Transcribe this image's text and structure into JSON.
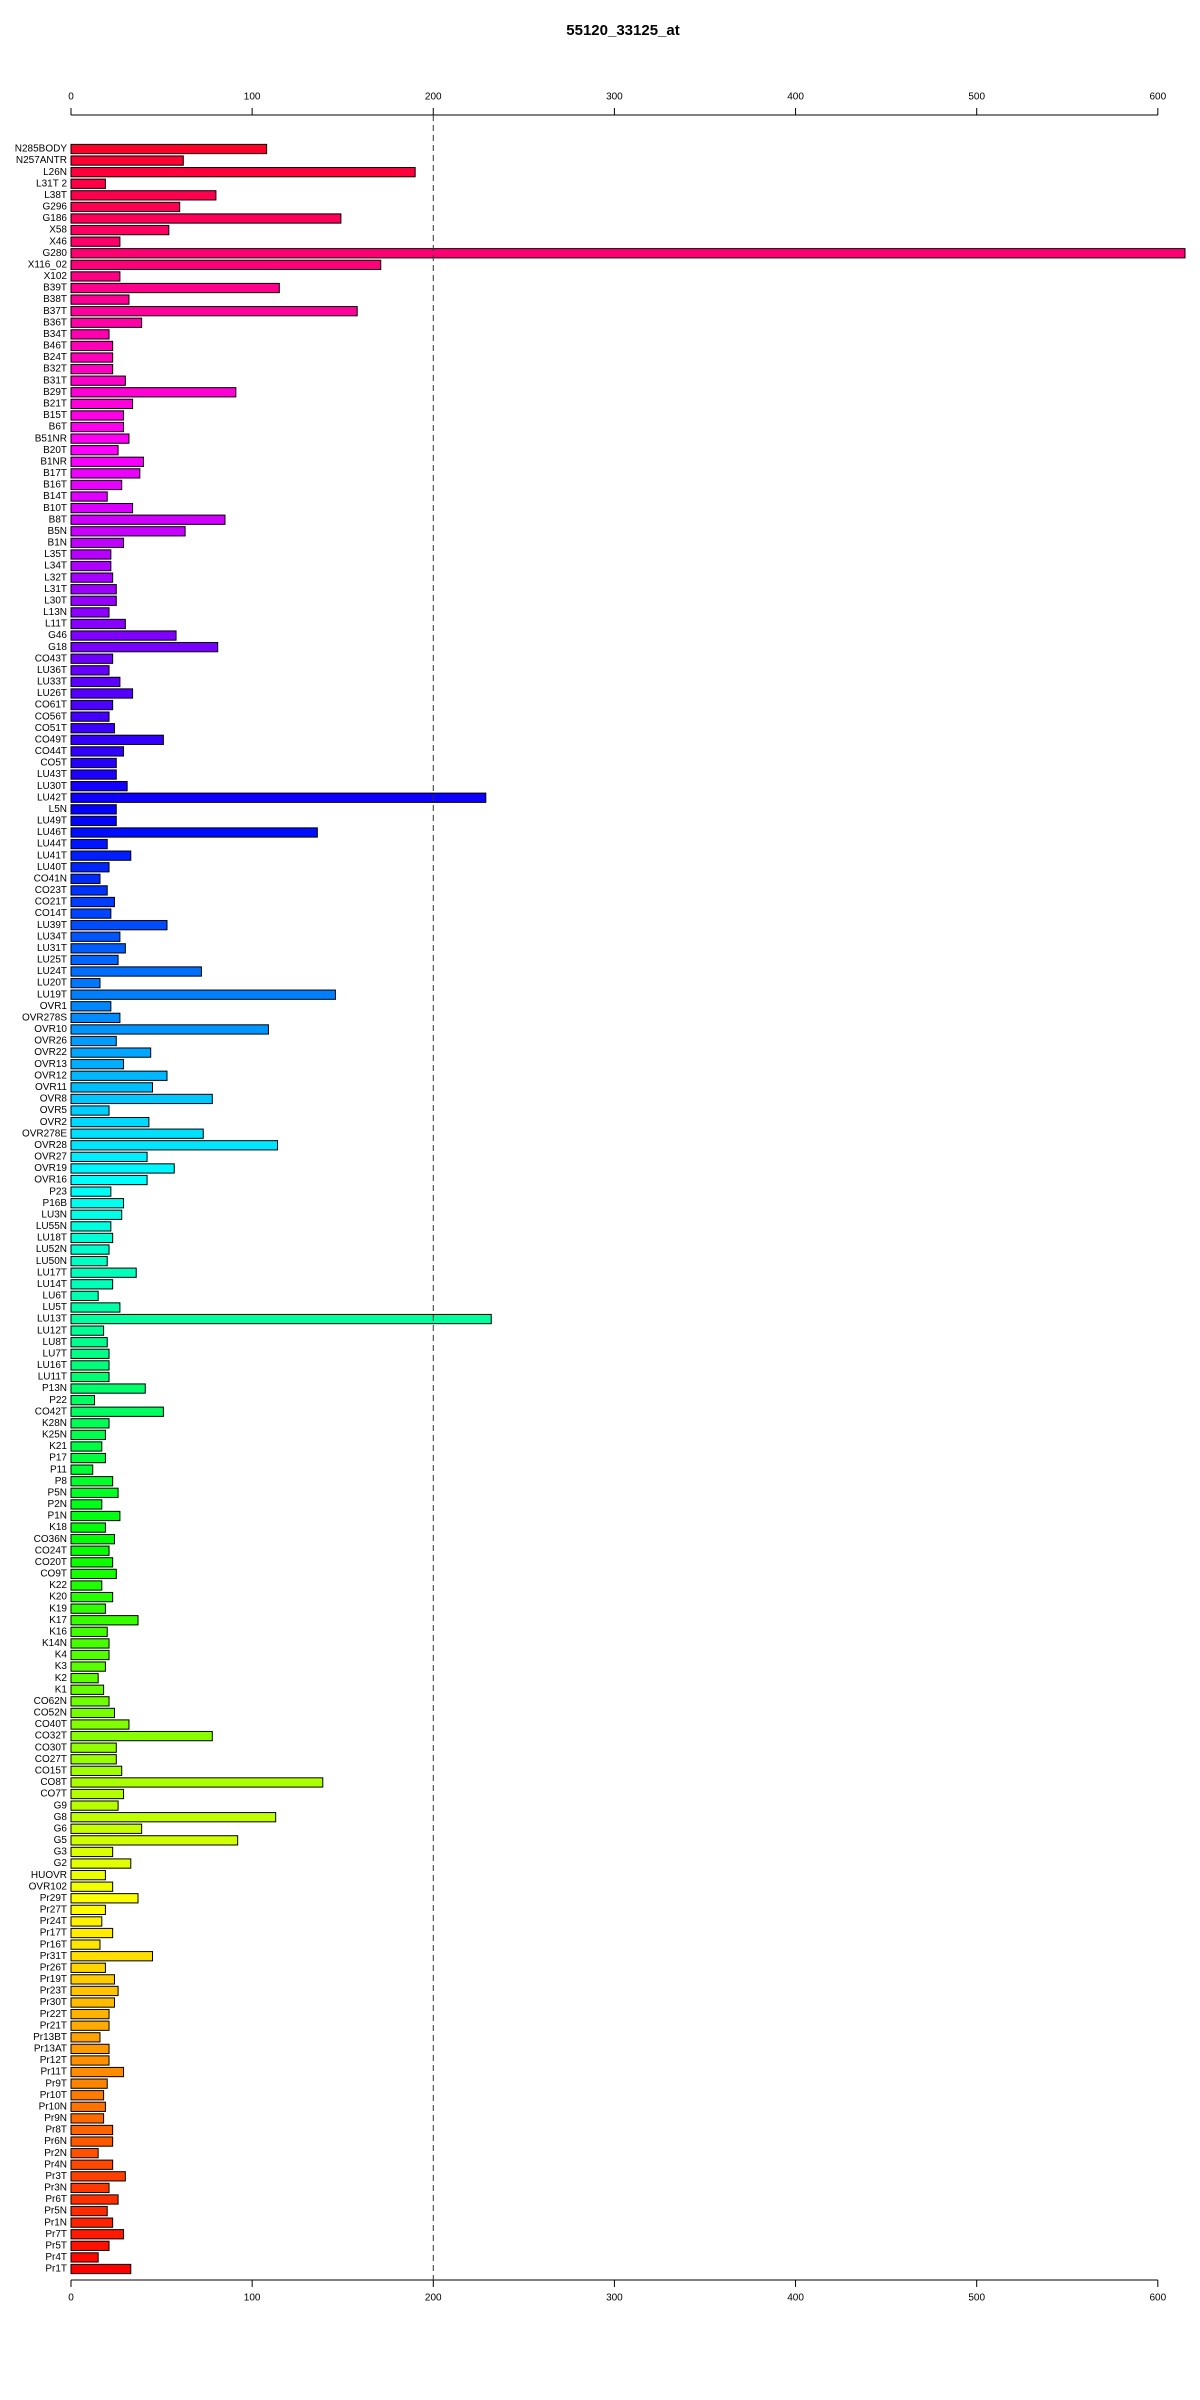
{
  "chart_data": {
    "type": "barh",
    "title": "55120_33125_at",
    "categories": [
      "N285BODY",
      "N257ANTR",
      "L26N",
      "L31T 2",
      "L38T",
      "G296",
      "G186",
      "X58",
      "X46",
      "G280",
      "X116_02",
      "X102",
      "B39T",
      "B38T",
      "B37T",
      "B36T",
      "B34T",
      "B46T",
      "B24T",
      "B32T",
      "B31T",
      "B29T",
      "B21T",
      "B15T",
      "B6T",
      "B51NR",
      "B20T",
      "B1NR",
      "B17T",
      "B16T",
      "B14T",
      "B10T",
      "B8T",
      "B5N",
      "B1N",
      "L35T",
      "L34T",
      "L32T",
      "L31T",
      "L30T",
      "L13N",
      "L11T",
      "G46",
      "G18",
      "CO43T",
      "LU36T",
      "LU33T",
      "LU26T",
      "CO61T",
      "CO56T",
      "CO51T",
      "CO49T",
      "CO44T",
      "CO5T",
      "LU43T",
      "LU30T",
      "LU42T",
      "L5N",
      "LU49T",
      "LU46T",
      "LU44T",
      "LU41T",
      "LU40T",
      "CO41N",
      "CO23T",
      "CO21T",
      "CO14T",
      "LU39T",
      "LU34T",
      "LU31T",
      "LU25T",
      "LU24T",
      "LU20T",
      "LU19T",
      "OVR1",
      "OVR278S",
      "OVR10",
      "OVR26",
      "OVR22",
      "OVR13",
      "OVR12",
      "OVR11",
      "OVR8",
      "OVR5",
      "OVR2",
      "OVR278E",
      "OVR28",
      "OVR27",
      "OVR19",
      "OVR16",
      "P23",
      "P16B",
      "LU3N",
      "LU55N",
      "LU18T",
      "LU52N",
      "LU50N",
      "LU17T",
      "LU14T",
      "LU6T",
      "LU5T",
      "LU13T",
      "LU12T",
      "LU8T",
      "LU7T",
      "LU16T",
      "LU11T",
      "P13N",
      "P22",
      "CO42T",
      "K28N",
      "K25N",
      "K21",
      "P17",
      "P11",
      "P8",
      "P5N",
      "P2N",
      "P1N",
      "K18",
      "CO36N",
      "CO24T",
      "CO20T",
      "CO9T",
      "K22",
      "K20",
      "K19",
      "K17",
      "K16",
      "K14N",
      "K4",
      "K3",
      "K2",
      "K1",
      "CO62N",
      "CO52N",
      "CO40T",
      "CO32T",
      "CO30T",
      "CO27T",
      "CO15T",
      "CO8T",
      "CO7T",
      "G9",
      "G8",
      "G6",
      "G5",
      "G3",
      "G2",
      "HUOVR",
      "OVR102",
      "Pr29T",
      "Pr27T",
      "Pr24T",
      "Pr17T",
      "Pr16T",
      "Pr31T",
      "Pr26T",
      "Pr19T",
      "Pr23T",
      "Pr30T",
      "Pr22T",
      "Pr21T",
      "Pr13BT",
      "Pr13AT",
      "Pr12T",
      "Pr11T",
      "Pr9T",
      "Pr10T",
      "Pr10N",
      "Pr9N",
      "Pr8T",
      "Pr6N",
      "Pr2N",
      "Pr4N",
      "Pr3T",
      "Pr3N",
      "Pr6T",
      "Pr5N",
      "Pr1N",
      "Pr7T",
      "Pr5T",
      "Pr4T",
      "Pr1T"
    ],
    "values": [
      108,
      62,
      190,
      19,
      80,
      60,
      149,
      54,
      27,
      615,
      171,
      27,
      115,
      32,
      158,
      39,
      21,
      23,
      23,
      23,
      30,
      91,
      34,
      29,
      29,
      32,
      26,
      40,
      38,
      28,
      20,
      34,
      85,
      63,
      29,
      22,
      22,
      23,
      25,
      25,
      21,
      30,
      58,
      81,
      23,
      21,
      27,
      34,
      23,
      21,
      24,
      51,
      29,
      25,
      25,
      31,
      229,
      25,
      25,
      136,
      20,
      33,
      21,
      16,
      20,
      24,
      22,
      53,
      27,
      30,
      26,
      72,
      16,
      146,
      22,
      27,
      109,
      25,
      44,
      29,
      53,
      45,
      78,
      21,
      43,
      73,
      114,
      42,
      57,
      42,
      22,
      29,
      28,
      22,
      23,
      21,
      20,
      36,
      23,
      15,
      27,
      232,
      18,
      20,
      21,
      21,
      21,
      41,
      13,
      51,
      21,
      19,
      17,
      19,
      12,
      23,
      26,
      17,
      27,
      19,
      24,
      21,
      23,
      25,
      17,
      23,
      19,
      37,
      20,
      21,
      21,
      19,
      15,
      18,
      21,
      24,
      32,
      78,
      25,
      25,
      28,
      139,
      29,
      26,
      113,
      39,
      92,
      23,
      33,
      19,
      23,
      37,
      19,
      17,
      23,
      16,
      45,
      19,
      24,
      26,
      24,
      21,
      21,
      16,
      21,
      21,
      29,
      20,
      18,
      19,
      18,
      23,
      23,
      15,
      23,
      30,
      21,
      26,
      20,
      23,
      29,
      21,
      15,
      33
    ],
    "colors": [
      "hsl(350,100%,50%)",
      "hsl(348,100%,50%)",
      "hsl(346,100%,50%)",
      "hsl(344,100%,50%)",
      "hsl(342,100%,50%)",
      "hsl(340,100%,50%)",
      "hsl(339,100%,50%)",
      "hsl(337,100%,50%)",
      "hsl(335,100%,50%)",
      "hsl(333,100%,50%)",
      "hsl(331,100%,50%)",
      "hsl(329,100%,50%)",
      "hsl(327,100%,50%)",
      "hsl(325,100%,50%)",
      "hsl(323,100%,50%)",
      "hsl(321,100%,50%)",
      "hsl(319,100%,50%)",
      "hsl(317,100%,50%)",
      "hsl(316,100%,50%)",
      "hsl(314,100%,50%)",
      "hsl(312,100%,50%)",
      "hsl(310,100%,50%)",
      "hsl(308,100%,50%)",
      "hsl(306,100%,50%)",
      "hsl(304,100%,50%)",
      "hsl(302,100%,50%)",
      "hsl(300,100%,50%)",
      "hsl(298,100%,50%)",
      "hsl(296,100%,50%)",
      "hsl(295,100%,50%)",
      "hsl(293,100%,50%)",
      "hsl(291,100%,50%)",
      "hsl(289,100%,50%)",
      "hsl(287,100%,50%)",
      "hsl(285,100%,50%)",
      "hsl(283,100%,50%)",
      "hsl(281,100%,50%)",
      "hsl(279,100%,50%)",
      "hsl(277,100%,50%)",
      "hsl(275,100%,50%)",
      "hsl(273,100%,50%)",
      "hsl(272,100%,50%)",
      "hsl(270,100%,50%)",
      "hsl(268,100%,50%)",
      "hsl(266,100%,50%)",
      "hsl(264,100%,50%)",
      "hsl(262,100%,50%)",
      "hsl(260,100%,50%)",
      "hsl(258,100%,50%)",
      "hsl(256,100%,50%)",
      "hsl(254,100%,50%)",
      "hsl(252,100%,50%)",
      "hsl(251,100%,50%)",
      "hsl(249,100%,50%)",
      "hsl(247,100%,50%)",
      "hsl(245,100%,50%)",
      "hsl(243,100%,50%)",
      "hsl(241,100%,50%)",
      "hsl(239,100%,50%)",
      "hsl(237,100%,50%)",
      "hsl(235,100%,50%)",
      "hsl(233,100%,50%)",
      "hsl(231,100%,50%)",
      "hsl(230,100%,50%)",
      "hsl(228,100%,50%)",
      "hsl(226,100%,50%)",
      "hsl(224,100%,50%)",
      "hsl(222,100%,50%)",
      "hsl(220,100%,50%)",
      "hsl(218,100%,50%)",
      "hsl(216,100%,50%)",
      "hsl(214,100%,50%)",
      "hsl(212,100%,50%)",
      "hsl(210,100%,50%)",
      "hsl(208,100%,50%)",
      "hsl(207,100%,50%)",
      "hsl(205,100%,50%)",
      "hsl(203,100%,50%)",
      "hsl(201,100%,50%)",
      "hsl(199,100%,50%)",
      "hsl(197,100%,50%)",
      "hsl(195,100%,50%)",
      "hsl(193,100%,50%)",
      "hsl(191,100%,50%)",
      "hsl(189,100%,50%)",
      "hsl(187,100%,50%)",
      "hsl(186,100%,50%)",
      "hsl(184,100%,50%)",
      "hsl(182,100%,50%)",
      "hsl(180,100%,50%)",
      "hsl(178,100%,50%)",
      "hsl(176,100%,50%)",
      "hsl(174,100%,50%)",
      "hsl(172,100%,50%)",
      "hsl(170,100%,50%)",
      "hsl(168,100%,50%)",
      "hsl(166,100%,50%)",
      "hsl(164,100%,50%)",
      "hsl(163,100%,50%)",
      "hsl(161,100%,50%)",
      "hsl(159,100%,50%)",
      "hsl(157,100%,50%)",
      "hsl(155,100%,50%)",
      "hsl(153,100%,50%)",
      "hsl(151,100%,50%)",
      "hsl(149,100%,50%)",
      "hsl(147,100%,50%)",
      "hsl(145,100%,50%)",
      "hsl(143,100%,50%)",
      "hsl(142,100%,50%)",
      "hsl(140,100%,50%)",
      "hsl(138,100%,50%)",
      "hsl(136,100%,50%)",
      "hsl(134,100%,50%)",
      "hsl(132,100%,50%)",
      "hsl(130,100%,50%)",
      "hsl(128,100%,50%)",
      "hsl(126,100%,50%)",
      "hsl(124,100%,50%)",
      "hsl(122,100%,50%)",
      "hsl(120,100%,50%)",
      "hsl(119,100%,50%)",
      "hsl(117,100%,50%)",
      "hsl(115,100%,50%)",
      "hsl(113,100%,50%)",
      "hsl(111,100%,50%)",
      "hsl(109,100%,50%)",
      "hsl(107,100%,50%)",
      "hsl(105,100%,50%)",
      "hsl(103,100%,50%)",
      "hsl(101,100%,50%)",
      "hsl(99,100%,50%)",
      "hsl(98,100%,50%)",
      "hsl(96,100%,50%)",
      "hsl(94,100%,50%)",
      "hsl(92,100%,50%)",
      "hsl(90,100%,50%)",
      "hsl(88,100%,50%)",
      "hsl(86,100%,50%)",
      "hsl(84,100%,50%)",
      "hsl(82,100%,50%)",
      "hsl(80,100%,50%)",
      "hsl(78,100%,50%)",
      "hsl(77,100%,50%)",
      "hsl(75,100%,50%)",
      "hsl(73,100%,50%)",
      "hsl(71,100%,50%)",
      "hsl(69,100%,50%)",
      "hsl(67,100%,50%)",
      "hsl(65,100%,50%)",
      "hsl(63,100%,50%)",
      "hsl(61,100%,50%)",
      "hsl(59,100%,50%)",
      "hsl(57,100%,50%)",
      "hsl(55,100%,50%)",
      "hsl(54,100%,50%)",
      "hsl(52,100%,50%)",
      "hsl(50,100%,50%)",
      "hsl(48,100%,50%)",
      "hsl(46,100%,50%)",
      "hsl(44,100%,50%)",
      "hsl(42,100%,50%)",
      "hsl(40,100%,50%)",
      "hsl(38,100%,50%)",
      "hsl(36,100%,50%)",
      "hsl(34,100%,50%)",
      "hsl(33,100%,50%)",
      "hsl(31,100%,50%)",
      "hsl(29,100%,50%)",
      "hsl(27,100%,50%)",
      "hsl(25,100%,50%)",
      "hsl(23,100%,50%)",
      "hsl(21,100%,50%)",
      "hsl(19,100%,50%)",
      "hsl(17,100%,50%)",
      "hsl(15,100%,50%)",
      "hsl(13,100%,50%)",
      "hsl(11,100%,50%)",
      "hsl(10,100%,50%)",
      "hsl(8,100%,50%)",
      "hsl(6,100%,50%)",
      "hsl(4,100%,50%)",
      "hsl(2,100%,50%)",
      "hsl(0,100%,50%)"
    ],
    "xlim": [
      0,
      615
    ],
    "xticks": [
      0,
      100,
      200,
      300,
      400,
      500,
      600
    ],
    "vline": 200
  }
}
